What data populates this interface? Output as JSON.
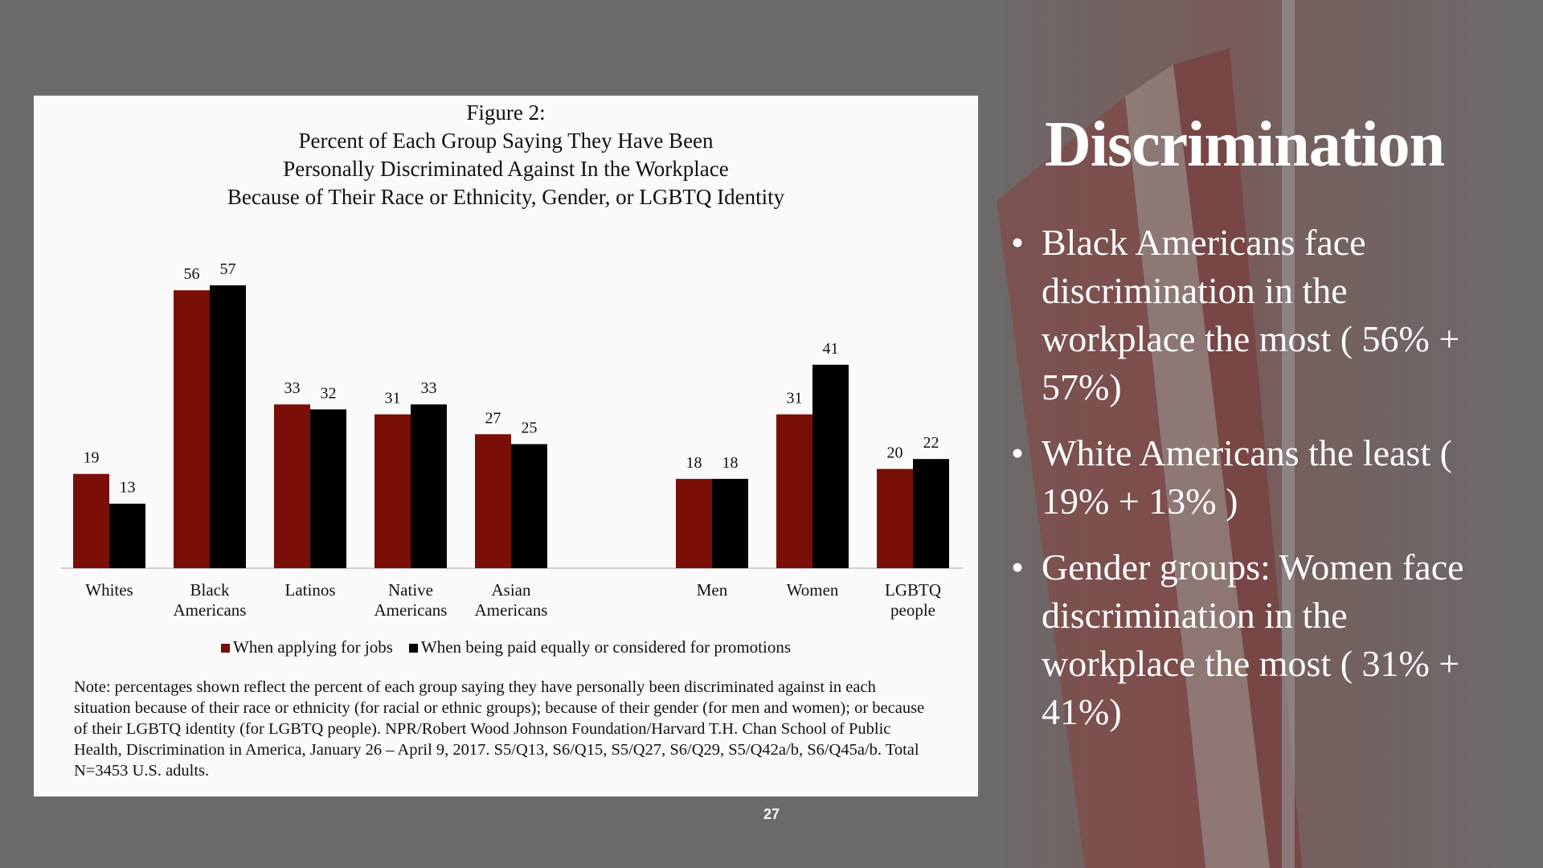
{
  "chart_data": {
    "type": "bar",
    "title": [
      "Figure 2:",
      "Percent of Each Group Saying They Have Been",
      "Personally Discriminated Against In the Workplace",
      "Because of Their Race or Ethnicity, Gender, or LGBTQ Identity"
    ],
    "categories": [
      "Whites",
      "Black Americans",
      "Latinos",
      "Native Americans",
      "Asian Americans",
      null,
      "Men",
      "Women",
      "LGBTQ people"
    ],
    "series": [
      {
        "name": "When applying for jobs",
        "color": "#7a0f07",
        "values": [
          19,
          56,
          33,
          31,
          27,
          null,
          18,
          31,
          20
        ]
      },
      {
        "name": "When being paid equally or considered for promotions",
        "color": "#000000",
        "values": [
          13,
          57,
          32,
          33,
          25,
          null,
          18,
          41,
          22
        ]
      }
    ],
    "data_labels": true,
    "note": "Note: percentages shown reflect the percent of each group saying they have personally been discriminated against in each situation because of their race or ethnicity (for racial or ethnic groups); because of their gender (for men and women); or because of their LGBTQ identity (for LGBTQ people). NPR/Robert Wood Johnson Foundation/Harvard T.H. Chan School of Public Health, Discrimination in America, January 26 – April 9, 2017. S5/Q13, S6/Q15, S5/Q27, S6/Q29, S5/Q42a/b, S6/Q45a/b. Total N=3453 U.S. adults."
  },
  "slide": {
    "heading": "Discrimination",
    "bullets": [
      "Black Americans face discrimination in the workplace the most ( 56% + 57%)",
      "White Americans the least ( 19% + 13% )",
      "Gender groups: Women face discrimination in the workplace the most ( 31% + 41%)"
    ],
    "page_number": "27"
  }
}
